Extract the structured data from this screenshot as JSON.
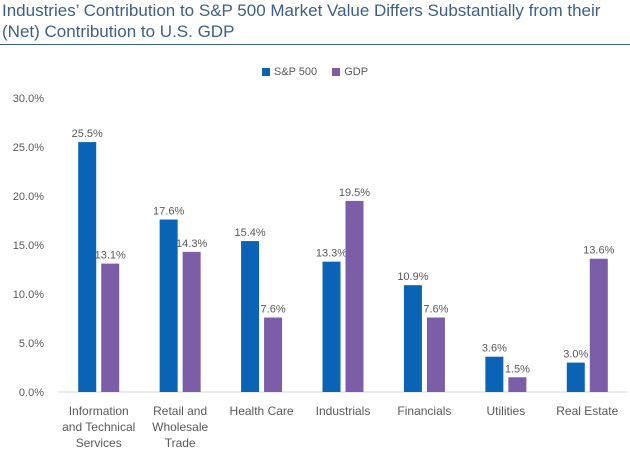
{
  "title_line1": "Industries’ Contribution to S&P 500 Market Value Differs Substantially from their",
  "title_line2": "(Net) Contribution to U.S. GDP",
  "chart_data": {
    "type": "bar",
    "title": "Industries’ Contribution to S&P 500 Market Value Differs Substantially from their (Net) Contribution to U.S. GDP",
    "categories": [
      [
        "Information",
        "and Technical",
        "Services"
      ],
      [
        "Retail and",
        "Wholesale",
        "Trade"
      ],
      [
        "Health Care"
      ],
      [
        "Industrials"
      ],
      [
        "Financials"
      ],
      [
        "Utilities"
      ],
      [
        "Real Estate"
      ]
    ],
    "series": [
      {
        "name": "S&P 500",
        "color": "#0b63b6",
        "values": [
          25.5,
          17.6,
          15.4,
          13.3,
          10.9,
          3.6,
          3.0
        ],
        "labels": [
          "25.5%",
          "17.6%",
          "15.4%",
          "13.3%",
          "10.9%",
          "3.6%",
          "3.0%"
        ]
      },
      {
        "name": "GDP",
        "color": "#7b5ea7",
        "values": [
          13.1,
          14.3,
          7.6,
          19.5,
          7.6,
          1.5,
          13.6
        ],
        "labels": [
          "13.1%",
          "14.3%",
          "7.6%",
          "19.5%",
          "7.6%",
          "1.5%",
          "13.6%"
        ]
      }
    ],
    "y_ticks": [
      0,
      5,
      10,
      15,
      20,
      25,
      30
    ],
    "y_tick_labels": [
      "0.0%",
      "5.0%",
      "10.0%",
      "15.0%",
      "20.0%",
      "25.0%",
      "30.0%"
    ],
    "ylim": [
      0,
      30
    ],
    "legend_position": "top-center",
    "grid": false
  }
}
